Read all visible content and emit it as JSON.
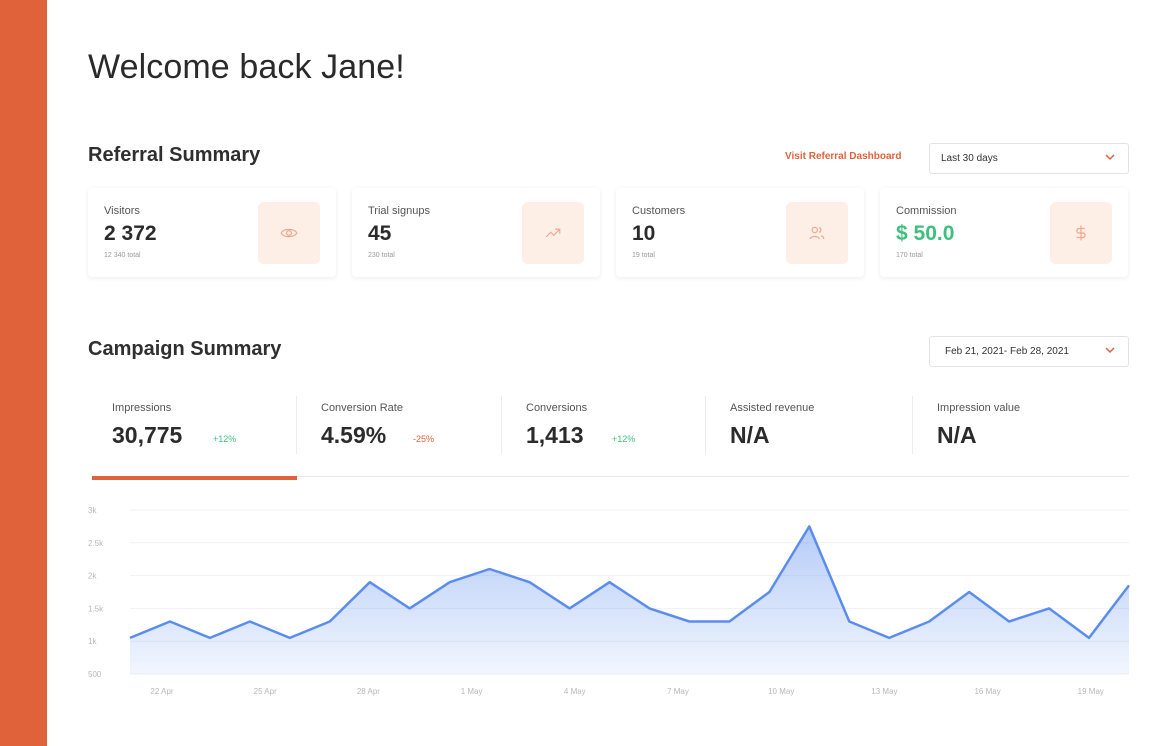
{
  "header": {
    "welcome": "Welcome back Jane!"
  },
  "referral": {
    "title": "Referral Summary",
    "dashboard_link": "Visit Referral Dashboard",
    "range_select": "Last 30 days",
    "cards": [
      {
        "label": "Visitors",
        "value": "2 372",
        "sub": "12 340 total",
        "icon": "eye-icon"
      },
      {
        "label": "Trial signups",
        "value": "45",
        "sub": "230 total",
        "icon": "trending-up-icon"
      },
      {
        "label": "Customers",
        "value": "10",
        "sub": "19 total",
        "icon": "users-icon"
      },
      {
        "label": "Commission",
        "value": "$ 50.0",
        "sub": "170 total",
        "icon": "dollar-icon"
      }
    ]
  },
  "campaign": {
    "title": "Campaign Summary",
    "date_select": "Feb 21, 2021- Feb 28, 2021",
    "metrics": [
      {
        "label": "Impressions",
        "value": "30,775",
        "delta": "+12%"
      },
      {
        "label": "Conversion Rate",
        "value": "4.59%",
        "delta": "-25%"
      },
      {
        "label": "Conversions",
        "value": "1,413",
        "delta": "+12%"
      },
      {
        "label": "Assisted revenue",
        "value": "N/A"
      },
      {
        "label": "Impression value",
        "value": "N/A"
      }
    ]
  },
  "colors": {
    "accent": "#e0623a",
    "positive": "#3fbf7f",
    "line": "#5b8def",
    "icon_bg": "#fdeee6"
  },
  "chart_data": {
    "type": "area",
    "y_ticks": [
      "3k",
      "2.5k",
      "2k",
      "1.5k",
      "1k",
      "500"
    ],
    "ylim": [
      500,
      3000
    ],
    "x_ticks": [
      "22 Apr",
      "25 Apr",
      "28 Apr",
      "1 May",
      "4 May",
      "7 May",
      "10 May",
      "13 May",
      "16 May",
      "19 May"
    ],
    "grid": true,
    "series": [
      {
        "values": [
          1050,
          1300,
          1050,
          1300,
          1050,
          1300,
          1900,
          1500,
          1900,
          2100,
          1900,
          1500,
          1900,
          1500,
          1300,
          1300,
          1750,
          2750,
          1300,
          1050,
          1300,
          1750,
          1300,
          1500,
          1050,
          1850
        ]
      }
    ]
  }
}
